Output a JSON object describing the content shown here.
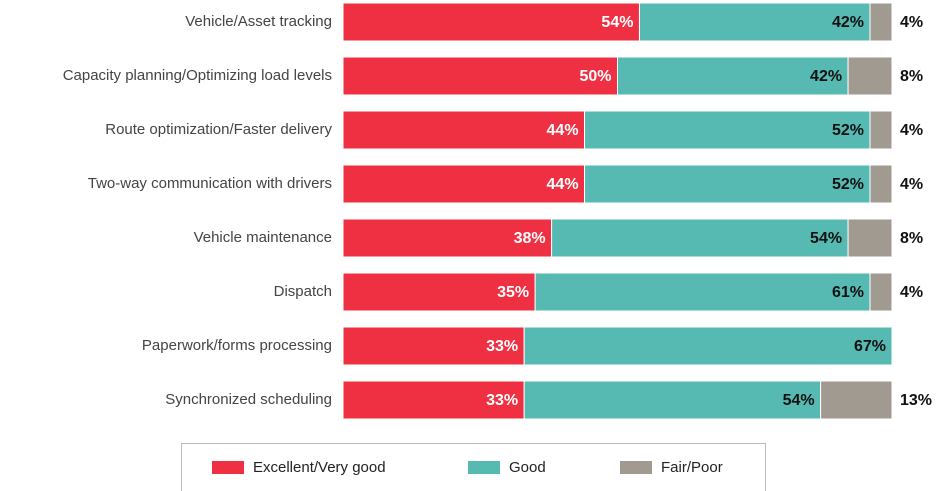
{
  "chart_data": {
    "type": "stacked-bar-horizontal",
    "categories": [
      "Vehicle/Asset tracking",
      "Capacity planning/Optimizing load levels",
      "Route optimization/Faster delivery",
      "Two-way communication with drivers",
      "Vehicle maintenance",
      "Dispatch",
      "Paperwork/forms processing",
      "Synchronized scheduling"
    ],
    "xlim": [
      0,
      100
    ],
    "series": [
      {
        "name": "Excellent/Very good",
        "color": "#ee3042",
        "values": [
          54,
          50,
          44,
          44,
          38,
          35,
          33,
          33
        ],
        "value_labels": [
          "54%",
          "50%",
          "44%",
          "44%",
          "38%",
          "35%",
          "33%",
          "33%"
        ]
      },
      {
        "name": "Good",
        "color": "#56b9b2",
        "values": [
          42,
          42,
          52,
          52,
          54,
          61,
          67,
          54
        ],
        "value_labels": [
          "42%",
          "42%",
          "52%",
          "52%",
          "54%",
          "61%",
          "67%",
          "54%"
        ]
      },
      {
        "name": "Fair/Poor",
        "color": "#a09a91",
        "values": [
          4,
          8,
          4,
          4,
          8,
          4,
          0,
          13
        ],
        "value_labels": [
          "4%",
          "8%",
          "4%",
          "4%",
          "8%",
          "4%",
          null,
          "13%"
        ]
      }
    ]
  }
}
